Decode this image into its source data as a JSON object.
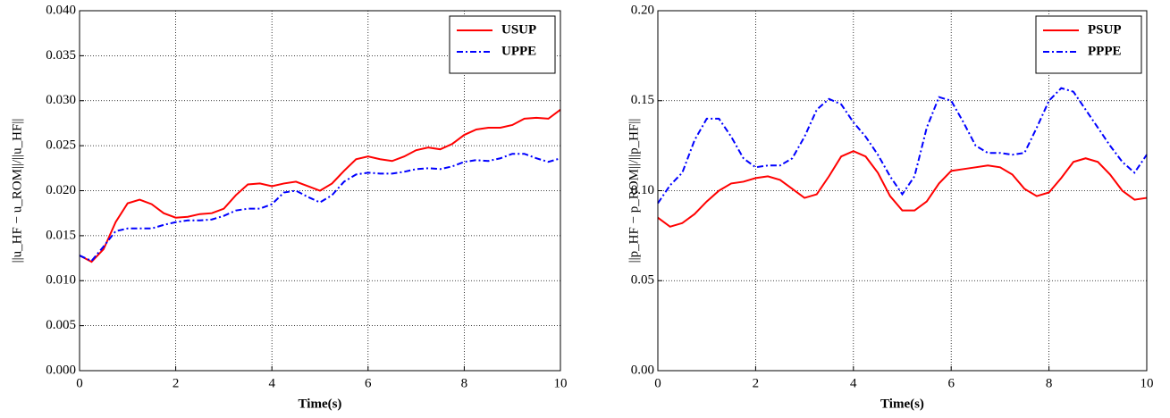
{
  "chart_data": [
    {
      "type": "line",
      "xlabel": "Time(s)",
      "ylabel": "||u_HF − u_ROM||/||u_HF||",
      "x": [
        0,
        0.25,
        0.5,
        0.75,
        1,
        1.25,
        1.5,
        1.75,
        2,
        2.25,
        2.5,
        2.75,
        3,
        3.25,
        3.5,
        3.75,
        4,
        4.25,
        4.5,
        4.75,
        5,
        5.25,
        5.5,
        5.75,
        6,
        6.25,
        6.5,
        6.75,
        7,
        7.25,
        7.5,
        7.75,
        8,
        8.25,
        8.5,
        8.75,
        9,
        9.25,
        9.5,
        9.75,
        10
      ],
      "series": [
        {
          "name": "USUP",
          "color": "#ff0000",
          "dash": "solid",
          "values": [
            0.0128,
            0.0121,
            0.0135,
            0.0165,
            0.0186,
            0.019,
            0.0185,
            0.0175,
            0.017,
            0.0171,
            0.0174,
            0.0175,
            0.018,
            0.0195,
            0.0207,
            0.0208,
            0.0205,
            0.0208,
            0.021,
            0.0205,
            0.02,
            0.0208,
            0.0222,
            0.0235,
            0.0238,
            0.0235,
            0.0233,
            0.0238,
            0.0245,
            0.0248,
            0.0246,
            0.0252,
            0.0262,
            0.0268,
            0.027,
            0.027,
            0.0273,
            0.028,
            0.0281,
            0.028,
            0.029
          ]
        },
        {
          "name": "UPPE",
          "color": "#0000ff",
          "dash": "dashdot",
          "values": [
            0.0128,
            0.0122,
            0.0138,
            0.0155,
            0.0158,
            0.0158,
            0.0158,
            0.0162,
            0.0165,
            0.0167,
            0.0167,
            0.0168,
            0.0172,
            0.0178,
            0.018,
            0.018,
            0.0185,
            0.0198,
            0.02,
            0.0193,
            0.0187,
            0.0195,
            0.021,
            0.0218,
            0.022,
            0.0219,
            0.0219,
            0.0221,
            0.0224,
            0.0225,
            0.0224,
            0.0227,
            0.0232,
            0.0234,
            0.0233,
            0.0236,
            0.0241,
            0.0241,
            0.0236,
            0.0232,
            0.0236
          ]
        }
      ],
      "xlim": [
        0,
        10
      ],
      "xticks": [
        0,
        2,
        4,
        6,
        8,
        10
      ],
      "ylim": [
        0,
        0.04
      ],
      "yticks": [
        {
          "value": 0,
          "label": "0.000"
        },
        0.005,
        {
          "value": 0.01,
          "label": "0.010"
        },
        0.015,
        {
          "value": 0.02,
          "label": "0.020"
        },
        0.025,
        {
          "value": 0.03,
          "label": "0.030"
        },
        0.035,
        {
          "value": 0.04,
          "label": "0.040"
        }
      ],
      "grid": true,
      "legend": "upper right"
    },
    {
      "type": "line",
      "xlabel": "Time(s)",
      "ylabel": "||p_HF − p_ROM||/||p_HF||",
      "x": [
        0,
        0.25,
        0.5,
        0.75,
        1,
        1.25,
        1.5,
        1.75,
        2,
        2.25,
        2.5,
        2.75,
        3,
        3.25,
        3.5,
        3.75,
        4,
        4.25,
        4.5,
        4.75,
        5,
        5.25,
        5.5,
        5.75,
        6,
        6.25,
        6.5,
        6.75,
        7,
        7.25,
        7.5,
        7.75,
        8,
        8.25,
        8.5,
        8.75,
        9,
        9.25,
        9.5,
        9.75,
        10
      ],
      "series": [
        {
          "name": "PSUP",
          "color": "#ff0000",
          "dash": "solid",
          "values": [
            0.085,
            0.08,
            0.082,
            0.087,
            0.094,
            0.1,
            0.104,
            0.105,
            0.107,
            0.108,
            0.106,
            0.101,
            0.096,
            0.098,
            0.108,
            0.119,
            0.122,
            0.119,
            0.11,
            0.097,
            0.089,
            0.089,
            0.094,
            0.104,
            0.111,
            0.112,
            0.113,
            0.114,
            0.113,
            0.109,
            0.101,
            0.097,
            0.099,
            0.107,
            0.116,
            0.118,
            0.116,
            0.109,
            0.1,
            0.095,
            0.096
          ]
        },
        {
          "name": "PPPE",
          "color": "#0000ff",
          "dash": "dashdot",
          "values": [
            0.093,
            0.103,
            0.11,
            0.128,
            0.14,
            0.14,
            0.13,
            0.118,
            0.113,
            0.114,
            0.114,
            0.118,
            0.13,
            0.145,
            0.151,
            0.148,
            0.138,
            0.13,
            0.12,
            0.108,
            0.098,
            0.108,
            0.135,
            0.152,
            0.15,
            0.138,
            0.125,
            0.121,
            0.121,
            0.12,
            0.121,
            0.135,
            0.15,
            0.157,
            0.155,
            0.145,
            0.135,
            0.125,
            0.116,
            0.11,
            0.12
          ]
        }
      ],
      "xlim": [
        0,
        10
      ],
      "xticks": [
        0,
        2,
        4,
        6,
        8,
        10
      ],
      "ylim": [
        0,
        0.2
      ],
      "yticks": [
        {
          "value": 0,
          "label": "0.00"
        },
        0.05,
        {
          "value": 0.1,
          "label": "0.10"
        },
        0.15,
        {
          "value": 0.2,
          "label": "0.20"
        }
      ],
      "grid": true,
      "legend": "upper right"
    }
  ]
}
